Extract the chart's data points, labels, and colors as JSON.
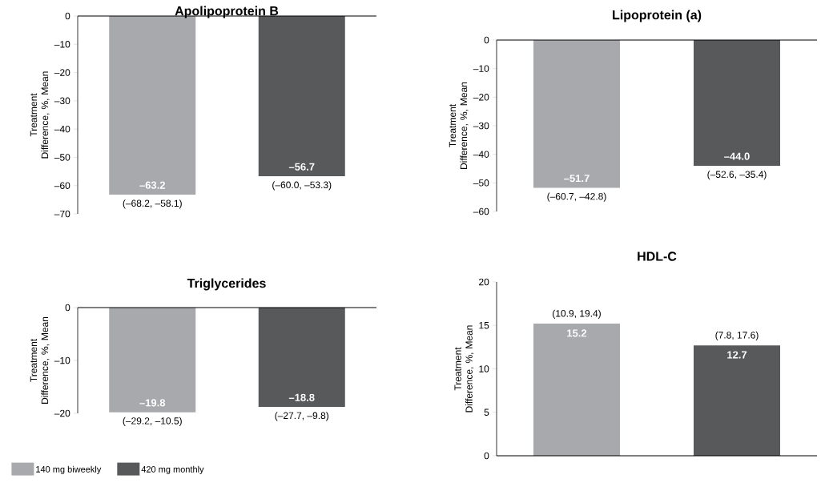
{
  "chart_data": [
    {
      "type": "bar",
      "title": "Apolipoprotein B",
      "ylabel": "Treatment Difference, %, Mean",
      "categories": [
        null,
        null
      ],
      "tick_labels": "y",
      "ylim": [
        -70,
        0
      ],
      "yticks": [
        0,
        {
          "value": -10,
          "label": "–10"
        },
        {
          "value": -20,
          "label": "–20"
        },
        {
          "value": -30,
          "label": "–30"
        },
        {
          "value": -40,
          "label": "–40"
        },
        {
          "value": -50,
          "label": "–50"
        },
        {
          "value": -60,
          "label": "–60"
        },
        {
          "value": -70,
          "label": "–70"
        }
      ],
      "series": [
        {
          "color": "#a7a9ac",
          "values": [
            -63.2,
            null
          ],
          "value_labels": [
            "–63.2",
            null
          ]
        },
        {
          "color": "#58595b",
          "values": [
            null,
            -56.7
          ],
          "value_labels": [
            null,
            "–56.7"
          ]
        }
      ],
      "annotations": [
        "(–68.2, –58.1)",
        "(–60.0, –53.3)"
      ]
    },
    {
      "type": "bar",
      "title": "Lipoprotein (a)",
      "ylabel": "Treatment Difference, %, Mean",
      "categories": [
        null,
        null
      ],
      "tick_labels": "y",
      "ylim": [
        -60,
        0
      ],
      "yticks": [
        0,
        {
          "value": -10,
          "label": "–10"
        },
        {
          "value": -20,
          "label": "–20"
        },
        {
          "value": -30,
          "label": "–30"
        },
        {
          "value": -40,
          "label": "–40"
        },
        {
          "value": -50,
          "label": "–50"
        },
        {
          "value": -60,
          "label": "–60"
        }
      ],
      "series": [
        {
          "color": "#a7a9ac",
          "values": [
            -51.7,
            null
          ],
          "value_labels": [
            "–51.7",
            null
          ]
        },
        {
          "color": "#58595b",
          "values": [
            null,
            -44.0
          ],
          "value_labels": [
            null,
            "–44.0"
          ]
        }
      ],
      "annotations": [
        "(–60.7, –42.8)",
        "(–52.6, –35.4)"
      ]
    },
    {
      "type": "bar",
      "title": "Triglycerides",
      "ylabel": "Treatment Difference, %, Mean",
      "categories": [
        null,
        null
      ],
      "tick_labels": "y",
      "ylim": [
        -20,
        0
      ],
      "yticks": [
        0,
        {
          "value": -10,
          "label": "–10"
        },
        {
          "value": -20,
          "label": "–20"
        }
      ],
      "series": [
        {
          "name": "140 mg biweekly",
          "color": "#a7a9ac",
          "values": [
            -19.8,
            null
          ],
          "value_labels": [
            "–19.8",
            null
          ]
        },
        {
          "name": "420 mg monthly",
          "color": "#58595b",
          "values": [
            null,
            -18.8
          ],
          "value_labels": [
            null,
            "–18.8"
          ]
        }
      ],
      "annotations": [
        "(–29.2, –10.5)",
        "(–27.7, –9.8)"
      ],
      "legend": "bottom left"
    },
    {
      "type": "bar",
      "title": "HDL-C",
      "ylabel": "Treatment Difference, %, Mean",
      "categories": [
        null,
        null
      ],
      "tick_labels": "y",
      "ylim": [
        0,
        20
      ],
      "yticks": [
        0,
        5,
        10,
        15,
        20
      ],
      "series": [
        {
          "color": "#a7a9ac",
          "values": [
            15.2,
            null
          ],
          "value_labels": [
            "15.2",
            null
          ]
        },
        {
          "color": "#58595b",
          "values": [
            null,
            12.7
          ],
          "value_labels": [
            null,
            "12.7"
          ]
        }
      ],
      "annotations": [
        "(10.9, 19.4)",
        "(7.8, 17.6)"
      ]
    }
  ]
}
